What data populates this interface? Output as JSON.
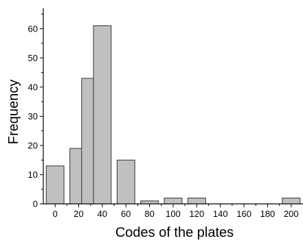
{
  "chart_data": {
    "type": "bar",
    "title": "",
    "xlabel": "Codes of the plates",
    "ylabel": "Frequency",
    "xlim": [
      -10,
      210
    ],
    "ylim": [
      0,
      67
    ],
    "xticks": [
      0,
      20,
      40,
      60,
      80,
      100,
      120,
      140,
      160,
      180,
      200
    ],
    "yticks": [
      0,
      10,
      20,
      30,
      40,
      50,
      60
    ],
    "bin_width": 15,
    "bars": [
      {
        "x": 0,
        "value": 13
      },
      {
        "x": 20,
        "value": 19
      },
      {
        "x": 30,
        "value": 43
      },
      {
        "x": 40,
        "value": 61
      },
      {
        "x": 60,
        "value": 15
      },
      {
        "x": 80,
        "value": 1
      },
      {
        "x": 100,
        "value": 2
      },
      {
        "x": 120,
        "value": 2
      },
      {
        "x": 200,
        "value": 2
      }
    ],
    "bar_color": "#c0c0c0",
    "edge_color": "#333333",
    "grid": false,
    "legend": "none"
  }
}
